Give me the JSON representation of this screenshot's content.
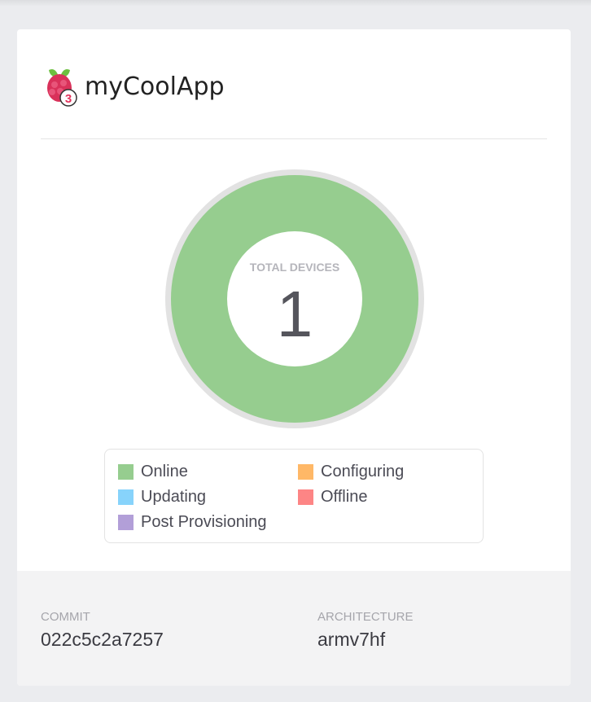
{
  "app": {
    "name": "myCoolApp",
    "device_badge": "3"
  },
  "chart_data": {
    "type": "pie",
    "center_label": "TOTAL DEVICES",
    "total": 1,
    "categories": [
      "Online",
      "Configuring",
      "Updating",
      "Offline",
      "Post Provisioning"
    ],
    "values": [
      1,
      0,
      0,
      0,
      0
    ],
    "colors": [
      "#96cd8f",
      "#ffb867",
      "#87d3fb",
      "#fd8585",
      "#b29fd8"
    ],
    "legend_position": "bottom"
  },
  "footer": {
    "commit_label": "COMMIT",
    "commit_value": "022c5c2a7257",
    "architecture_label": "ARCHITECTURE",
    "architecture_value": "armv7hf"
  }
}
